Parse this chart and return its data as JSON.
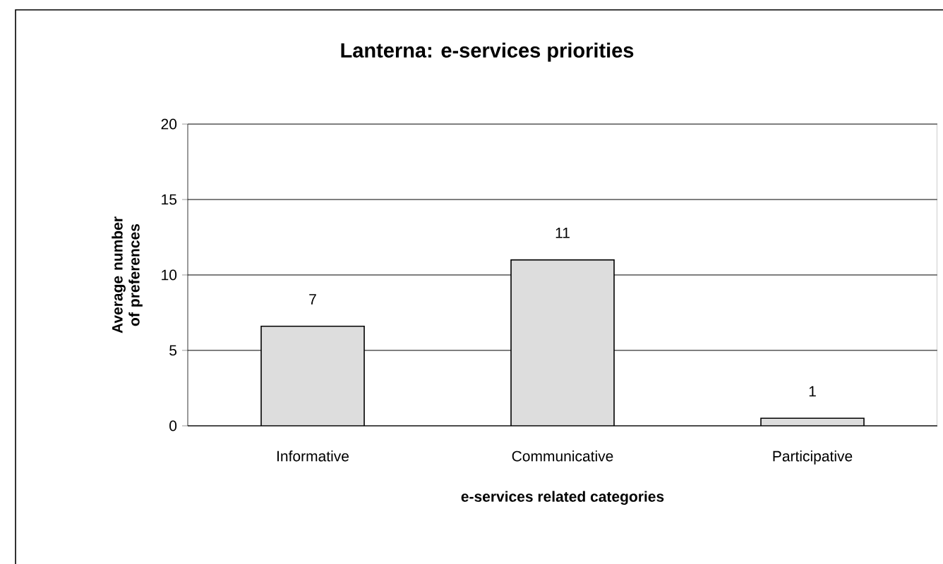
{
  "chart_data": {
    "type": "bar",
    "title": "Lanterna: e-services priorities",
    "xlabel": "e-services related categories",
    "ylabel": "Average number of preferences",
    "categories": [
      "Informative",
      "Communicative",
      "Participative"
    ],
    "values": [
      6.6,
      11,
      0.5
    ],
    "value_labels": [
      "7",
      "11",
      "1"
    ],
    "color": "#dddddd",
    "ylim": [
      0,
      20
    ],
    "yticks": [
      0,
      5,
      10,
      15,
      20
    ],
    "grid": "y"
  }
}
